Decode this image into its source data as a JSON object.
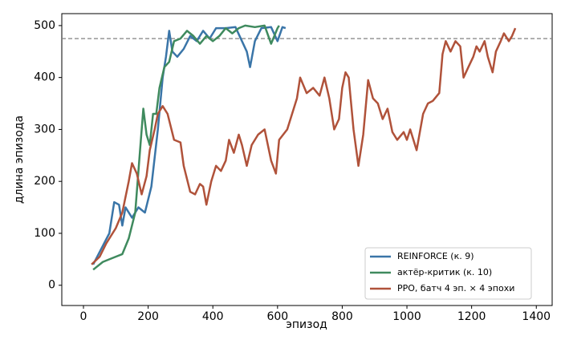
{
  "chart_data": {
    "type": "line",
    "xlabel": "эпизод",
    "ylabel": "длина эпизода",
    "xlim": [
      -67,
      1449
    ],
    "ylim": [
      -39,
      523
    ],
    "xticks": [
      0,
      200,
      400,
      600,
      800,
      1000,
      1200,
      1400
    ],
    "yticks": [
      0,
      100,
      200,
      300,
      400,
      500
    ],
    "grid": false,
    "legend": "lower right",
    "hline": {
      "value": 475,
      "color": "#808080"
    },
    "series": [
      {
        "name": "REINFORCE (к. 9)",
        "color": "#3a75a8",
        "x": [
          30,
          80,
          95,
          110,
          120,
          130,
          150,
          170,
          190,
          210,
          230,
          245,
          255,
          265,
          275,
          290,
          310,
          330,
          350,
          370,
          390,
          410,
          440,
          470,
          490,
          505,
          515,
          530,
          550,
          580,
          600,
          615,
          625
        ],
        "values": [
          40,
          100,
          160,
          155,
          115,
          150,
          130,
          150,
          140,
          190,
          300,
          400,
          440,
          490,
          450,
          440,
          455,
          480,
          470,
          490,
          475,
          495,
          495,
          497,
          470,
          450,
          420,
          470,
          495,
          497,
          470,
          497,
          495
        ]
      },
      {
        "name": "актёр-критик (к. 10)",
        "color": "#3f8a5e",
        "x": [
          30,
          60,
          80,
          100,
          120,
          140,
          160,
          175,
          185,
          195,
          205,
          215,
          225,
          235,
          250,
          265,
          280,
          300,
          320,
          340,
          360,
          380,
          400,
          420,
          440,
          460,
          480,
          500,
          530,
          560,
          580,
          600,
          605
        ],
        "values": [
          30,
          45,
          50,
          55,
          60,
          90,
          140,
          260,
          340,
          290,
          270,
          330,
          330,
          380,
          420,
          430,
          470,
          475,
          490,
          480,
          465,
          480,
          470,
          480,
          495,
          485,
          495,
          500,
          497,
          500,
          465,
          495,
          500
        ]
      },
      {
        "name": "PPO, батч 4 эп. × 4 эпохи",
        "color": "#b0523a",
        "x": [
          25,
          50,
          70,
          100,
          120,
          140,
          150,
          165,
          180,
          195,
          205,
          220,
          230,
          245,
          260,
          280,
          300,
          310,
          330,
          345,
          360,
          370,
          380,
          395,
          410,
          425,
          440,
          450,
          465,
          480,
          490,
          505,
          520,
          540,
          560,
          580,
          595,
          605,
          630,
          660,
          670,
          690,
          710,
          730,
          745,
          760,
          775,
          790,
          800,
          810,
          820,
          835,
          850,
          865,
          880,
          895,
          910,
          925,
          940,
          955,
          970,
          990,
          1000,
          1010,
          1030,
          1050,
          1065,
          1080,
          1100,
          1110,
          1120,
          1135,
          1150,
          1165,
          1175,
          1190,
          1205,
          1215,
          1225,
          1240,
          1250,
          1265,
          1275,
          1290,
          1300,
          1315,
          1325,
          1335
        ],
        "values": [
          40,
          55,
          80,
          110,
          140,
          200,
          235,
          215,
          175,
          210,
          260,
          300,
          330,
          345,
          330,
          280,
          275,
          230,
          180,
          175,
          195,
          190,
          155,
          200,
          230,
          220,
          240,
          280,
          255,
          290,
          270,
          230,
          270,
          290,
          300,
          240,
          215,
          280,
          300,
          360,
          400,
          370,
          380,
          365,
          400,
          360,
          300,
          320,
          380,
          410,
          400,
          300,
          230,
          290,
          395,
          360,
          350,
          320,
          340,
          295,
          280,
          295,
          280,
          300,
          260,
          330,
          350,
          355,
          370,
          445,
          470,
          450,
          470,
          460,
          400,
          420,
          440,
          460,
          450,
          470,
          440,
          410,
          450,
          470,
          485,
          470,
          480,
          495
        ]
      }
    ]
  }
}
